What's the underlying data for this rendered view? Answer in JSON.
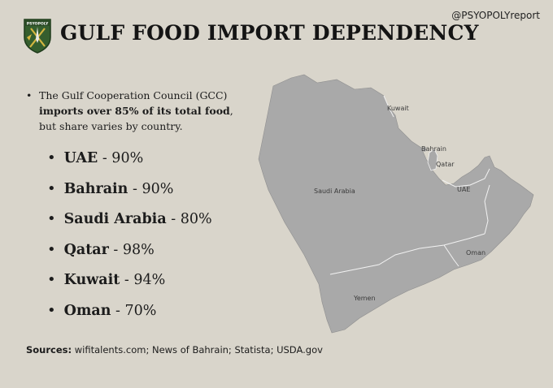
{
  "header": {
    "title": "GULF FOOD IMPORT DEPENDENCY",
    "handle": "@PSYOPOLYreport",
    "logo_text": "PSYOPOLY"
  },
  "intro": {
    "bullet": "•",
    "part1": "The Gulf Cooperation Council (GCC) ",
    "bold": "imports over 85% of its total food",
    "part2": ", but share varies by country."
  },
  "countries": [
    {
      "bullet": "•",
      "name": "UAE",
      "value": " - 90%"
    },
    {
      "bullet": "•",
      "name": "Bahrain",
      "value": " - 90%"
    },
    {
      "bullet": "•",
      "name": "Saudi Arabia",
      "value": " - 80%"
    },
    {
      "bullet": "•",
      "name": "Qatar",
      "value": " - 98%"
    },
    {
      "bullet": "•",
      "name": "Kuwait",
      "value": " - 94%"
    },
    {
      "bullet": "•",
      "name": "Oman",
      "value": " - 70%"
    }
  ],
  "sources": {
    "label": "Sources:",
    "text": " wifitalents.com; News of Bahrain; Statista; USDA.gov"
  },
  "map_labels": {
    "kuwait": "Kuwait",
    "bahrain": "Bahrain",
    "qatar": "Qatar",
    "saudi": "Saudi Arabia",
    "uae": "UAE",
    "oman": "Oman",
    "yemen": "Yemen"
  },
  "colors": {
    "background": "#d9d5cb",
    "land": "#a9a9a9",
    "border": "#f2f2f2",
    "logo_green": "#355e2e",
    "logo_gold": "#d4b640"
  }
}
